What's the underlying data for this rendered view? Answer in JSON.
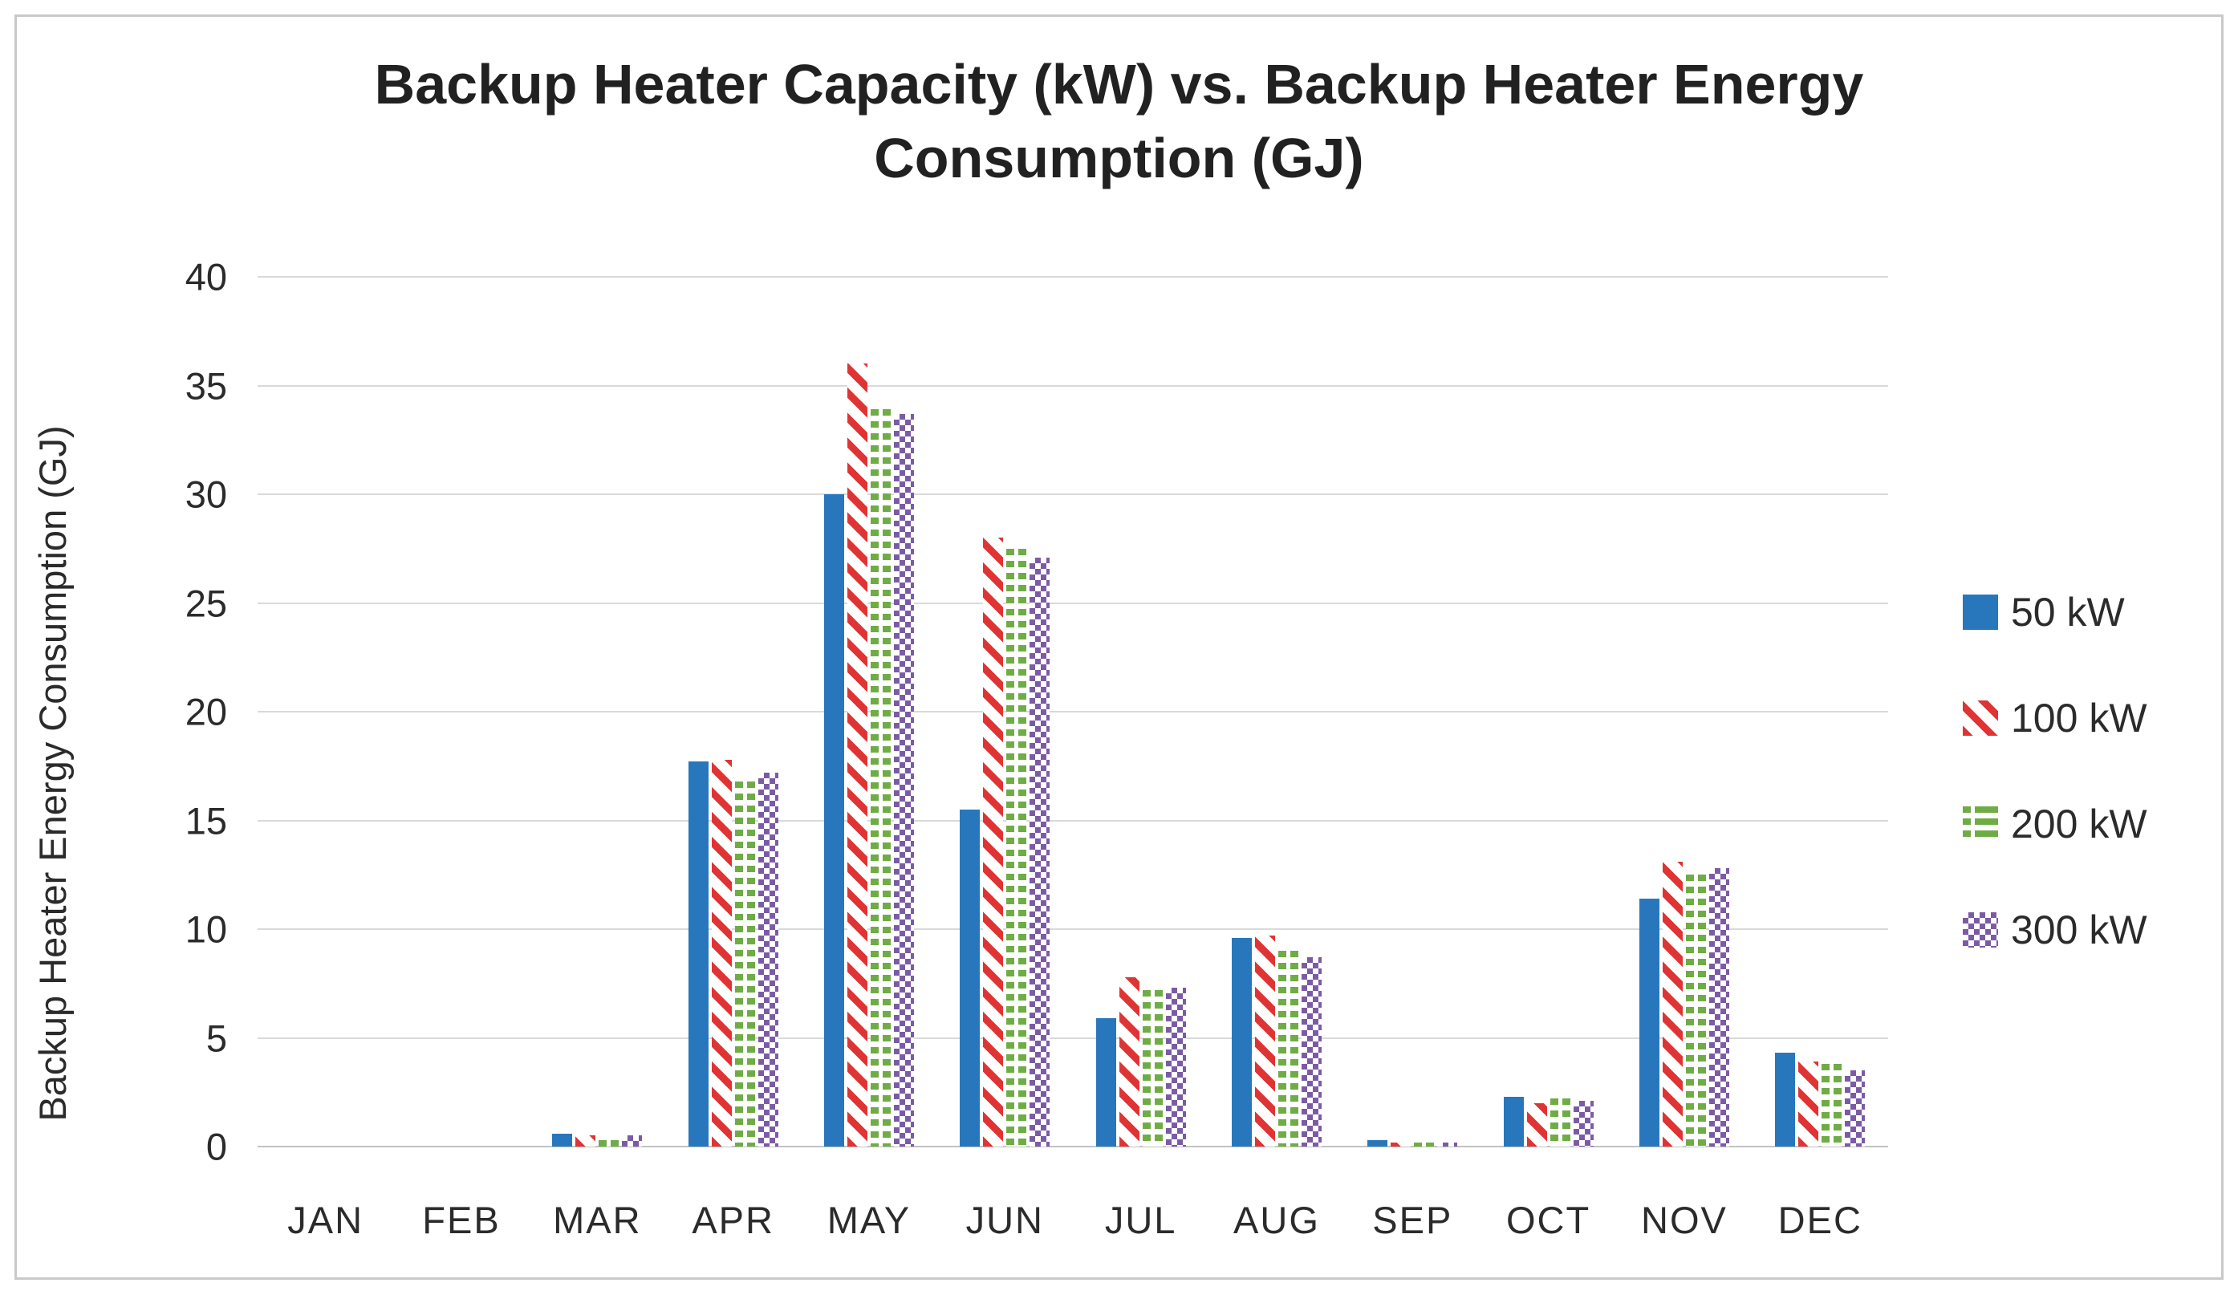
{
  "title": {
    "line1": "Backup Heater Capacity (kW) vs. Backup Heater Energy",
    "line2": "Consumption (GJ)"
  },
  "axes": {
    "y_title": "Backup Heater Energy Consumption (GJ)",
    "y_ticks": [
      40,
      35,
      30,
      25,
      20,
      15,
      10,
      5,
      0
    ],
    "x_labels": [
      "JAN",
      "FEB",
      "MAR",
      "APR",
      "MAY",
      "JUN",
      "JUL",
      "AUG",
      "SEP",
      "OCT",
      "NOV",
      "DEC"
    ]
  },
  "colors": {
    "series_blue": "#2877BD",
    "series_red": "#E03434",
    "series_green": "#6FAC46",
    "series_purple": "#7B5BA6",
    "gridline": "#D9D9D9",
    "axis_text": "#2b2b2b",
    "title_text": "#212121",
    "border": "#C9C9C9"
  },
  "chart_data": {
    "type": "bar",
    "title": "Backup Heater Capacity (kW) vs. Backup Heater Energy Consumption (GJ)",
    "xlabel": "",
    "ylabel": "Backup Heater Energy Consumption (GJ)",
    "ylim": [
      0,
      40
    ],
    "ytick_step": 5,
    "grid": true,
    "legend_position": "right",
    "categories": [
      "JAN",
      "FEB",
      "MAR",
      "APR",
      "MAY",
      "JUN",
      "JUL",
      "AUG",
      "SEP",
      "OCT",
      "NOV",
      "DEC"
    ],
    "series": [
      {
        "name": "50 kW",
        "color": "#2877BD",
        "pattern": "solid",
        "values": [
          0,
          0,
          0.6,
          17.7,
          30,
          15.5,
          5.9,
          9.6,
          0.3,
          2.3,
          11.4,
          4.3
        ]
      },
      {
        "name": "100 kW",
        "color": "#E03434",
        "pattern": "diagonal-stripes",
        "values": [
          0,
          0,
          0.5,
          17.8,
          36,
          28,
          7.8,
          9.7,
          0.2,
          2.0,
          13.1,
          3.9
        ]
      },
      {
        "name": "200 kW",
        "color": "#6FAC46",
        "pattern": "horizontal-lines",
        "values": [
          0,
          0,
          0.3,
          16.8,
          33.9,
          27.5,
          7.2,
          9.0,
          0.2,
          2.2,
          12.5,
          3.8
        ]
      },
      {
        "name": "300 kW",
        "color": "#7B5BA6",
        "pattern": "dots",
        "values": [
          0,
          0,
          0.5,
          17.2,
          33.7,
          27.1,
          7.3,
          8.7,
          0.2,
          2.1,
          12.8,
          3.5
        ]
      }
    ]
  }
}
